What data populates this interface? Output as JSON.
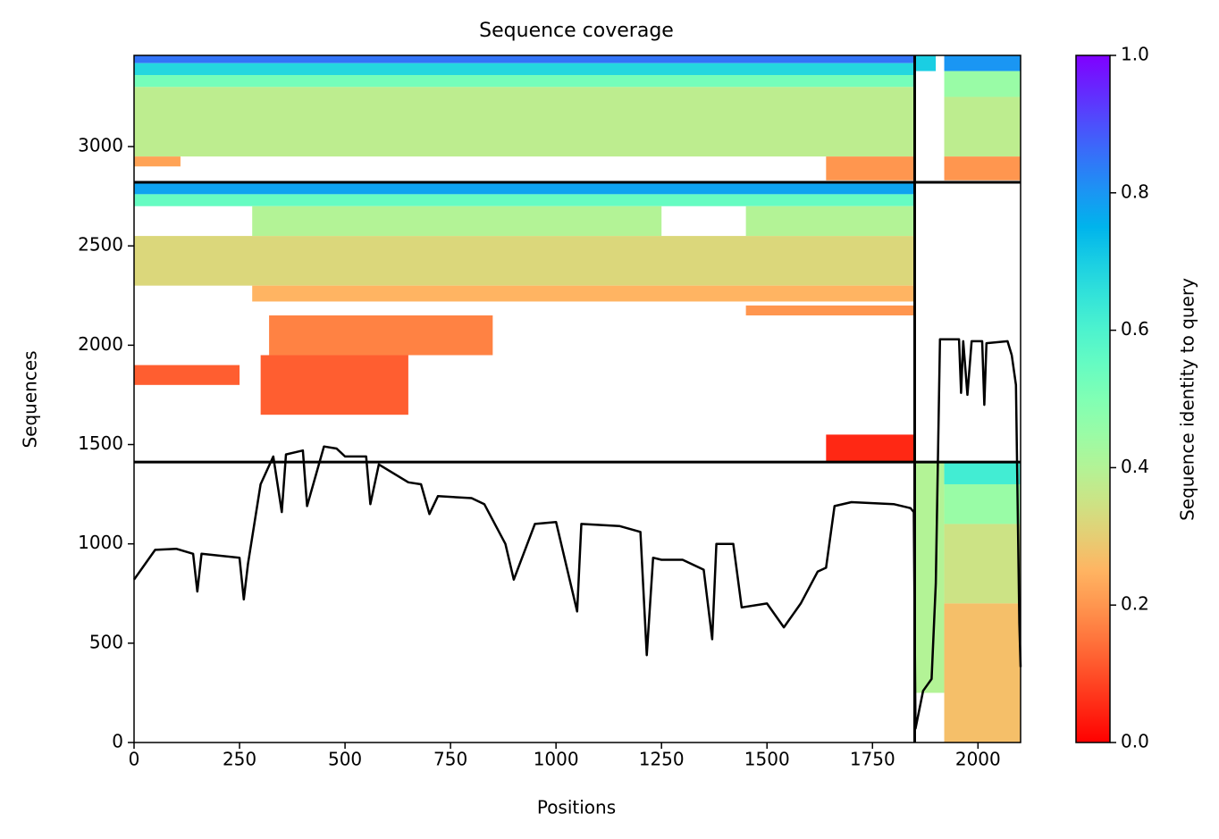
{
  "chart_data": {
    "type": "coverage",
    "title": "Sequence coverage",
    "xlabel": "Positions",
    "ylabel": "Sequences",
    "xlim": [
      0,
      2101
    ],
    "ylim": [
      0,
      3459
    ],
    "xticks": [
      0,
      250,
      500,
      750,
      1000,
      1250,
      1500,
      1750,
      2000
    ],
    "yticks": [
      0,
      500,
      1000,
      1500,
      2000,
      2500,
      3000
    ],
    "colormap": "rainbow_r",
    "colorbar": {
      "label": "Sequence identity to query",
      "lim": [
        0,
        1
      ],
      "ticks": [
        {
          "value": 0,
          "label": "0.0"
        },
        0.2,
        0.4,
        0.6,
        0.8,
        {
          "value": 1,
          "label": "1.0"
        }
      ]
    },
    "blocks": [
      {
        "x": [
          0,
          1850
        ],
        "y": [
          3420,
          3459
        ],
        "identity": 0.85
      },
      {
        "x": [
          0,
          1850
        ],
        "y": [
          3360,
          3420
        ],
        "identity": 0.68
      },
      {
        "x": [
          0,
          1850
        ],
        "y": [
          3300,
          3360
        ],
        "identity": 0.52
      },
      {
        "x": [
          0,
          1850
        ],
        "y": [
          2950,
          3300
        ],
        "identity": 0.38
      },
      {
        "x": [
          0,
          110
        ],
        "y": [
          2900,
          2950
        ],
        "identity": 0.22
      },
      {
        "x": [
          1640,
          1850
        ],
        "y": [
          2830,
          2950
        ],
        "identity": 0.2
      },
      {
        "x": [
          1850,
          1900
        ],
        "y": [
          3380,
          3459
        ],
        "identity": 0.7
      },
      {
        "x": [
          1920,
          2101
        ],
        "y": [
          3380,
          3459
        ],
        "identity": 0.8
      },
      {
        "x": [
          1920,
          2101
        ],
        "y": [
          3250,
          3380
        ],
        "identity": 0.45
      },
      {
        "x": [
          1920,
          2101
        ],
        "y": [
          2950,
          3250
        ],
        "identity": 0.38
      },
      {
        "x": [
          1920,
          2101
        ],
        "y": [
          2830,
          2950
        ],
        "identity": 0.2
      },
      {
        "x": [
          0,
          1850
        ],
        "y": [
          2760,
          2820
        ],
        "identity": 0.78
      },
      {
        "x": [
          0,
          1850
        ],
        "y": [
          2700,
          2760
        ],
        "identity": 0.55
      },
      {
        "x": [
          280,
          1250
        ],
        "y": [
          2550,
          2700
        ],
        "identity": 0.4
      },
      {
        "x": [
          1450,
          1850
        ],
        "y": [
          2550,
          2700
        ],
        "identity": 0.4
      },
      {
        "x": [
          0,
          1850
        ],
        "y": [
          2300,
          2550
        ],
        "identity": 0.32
      },
      {
        "x": [
          280,
          1850
        ],
        "y": [
          2220,
          2300
        ],
        "identity": 0.25
      },
      {
        "x": [
          1450,
          1850
        ],
        "y": [
          2150,
          2200
        ],
        "identity": 0.2
      },
      {
        "x": [
          320,
          850
        ],
        "y": [
          1950,
          2150
        ],
        "identity": 0.17
      },
      {
        "x": [
          300,
          650
        ],
        "y": [
          1650,
          1950
        ],
        "identity": 0.12
      },
      {
        "x": [
          0,
          250
        ],
        "y": [
          1800,
          1900
        ],
        "identity": 0.12
      },
      {
        "x": [
          1640,
          1850
        ],
        "y": [
          1412,
          1550
        ],
        "identity": 0.05
      },
      {
        "x": [
          1850,
          1920
        ],
        "y": [
          250,
          1412
        ],
        "identity": 0.4
      },
      {
        "x": [
          1920,
          2101
        ],
        "y": [
          1300,
          1412
        ],
        "identity": 0.62
      },
      {
        "x": [
          1920,
          2101
        ],
        "y": [
          1100,
          1300
        ],
        "identity": 0.45
      },
      {
        "x": [
          1920,
          2101
        ],
        "y": [
          700,
          1100
        ],
        "identity": 0.35
      },
      {
        "x": [
          1920,
          2101
        ],
        "y": [
          0,
          700
        ],
        "identity": 0.27
      }
    ],
    "dividers": {
      "x": [
        1850
      ],
      "y": [
        1412,
        2820
      ]
    },
    "coverage": {
      "color": "#000000",
      "x": [
        0,
        50,
        100,
        140,
        150,
        160,
        250,
        260,
        270,
        300,
        330,
        350,
        360,
        400,
        410,
        450,
        480,
        500,
        550,
        560,
        580,
        650,
        680,
        700,
        720,
        800,
        830,
        880,
        900,
        950,
        1000,
        1050,
        1060,
        1150,
        1200,
        1215,
        1230,
        1250,
        1300,
        1350,
        1370,
        1380,
        1420,
        1440,
        1500,
        1540,
        1580,
        1620,
        1640,
        1660,
        1700,
        1800,
        1840,
        1848,
        1852,
        1870,
        1890,
        1900,
        1910,
        1955,
        1960,
        1965,
        1975,
        1985,
        2010,
        2015,
        2020,
        2070,
        2080,
        2090,
        2098,
        2101
      ],
      "values": [
        820,
        970,
        975,
        950,
        760,
        950,
        930,
        720,
        900,
        1300,
        1440,
        1160,
        1450,
        1470,
        1190,
        1490,
        1480,
        1440,
        1440,
        1200,
        1400,
        1310,
        1300,
        1150,
        1240,
        1230,
        1200,
        1000,
        820,
        1100,
        1110,
        660,
        1100,
        1090,
        1060,
        440,
        930,
        920,
        920,
        870,
        520,
        1000,
        1000,
        680,
        700,
        580,
        700,
        860,
        880,
        1190,
        1210,
        1200,
        1180,
        1160,
        70,
        260,
        320,
        800,
        2030,
        2030,
        1760,
        2020,
        1750,
        2020,
        2020,
        1700,
        2010,
        2020,
        1950,
        1800,
        600,
        380
      ]
    }
  }
}
